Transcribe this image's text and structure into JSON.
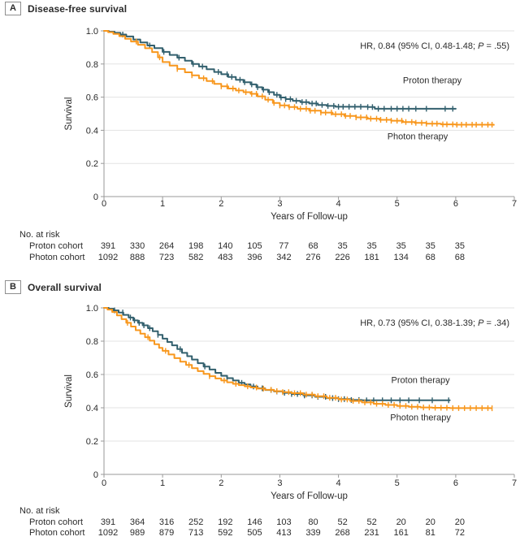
{
  "colors": {
    "proton": "#33606E",
    "photon": "#F8971D",
    "grid": "#e3e3e3",
    "axis": "#9a9a9a",
    "text": "#2b2b2b"
  },
  "chart_data": [
    {
      "type": "line",
      "subtype": "kaplan-meier-step",
      "panel_label": "A",
      "title": "Disease-free survival",
      "hr_annotation": {
        "prefix": "HR, 0.84 (95% CI, 0.48-1.48; ",
        "italic": "P",
        "suffix": " = .55)"
      },
      "xlabel": "Years of Follow-up",
      "ylabel": "Survival",
      "xlim": [
        0,
        7
      ],
      "ylim": [
        0,
        1
      ],
      "xticks": [
        0,
        1,
        2,
        3,
        4,
        5,
        6,
        7
      ],
      "ytick_values": [
        1.0,
        0.8,
        0.6,
        0.4,
        0.2,
        0
      ],
      "ytick_labels": [
        "1.0",
        "0.8",
        "0.6",
        "0.4",
        "0.2",
        "0"
      ],
      "grid": true,
      "series": [
        {
          "name": "Proton therapy",
          "color_key": "proton",
          "label_pos": [
            5.6,
            0.685
          ],
          "points": [
            [
              0,
              1
            ],
            [
              0.08,
              0.995
            ],
            [
              0.18,
              0.988
            ],
            [
              0.28,
              0.978
            ],
            [
              0.38,
              0.966
            ],
            [
              0.5,
              0.948
            ],
            [
              0.62,
              0.93
            ],
            [
              0.74,
              0.912
            ],
            [
              0.86,
              0.896
            ],
            [
              1.0,
              0.873
            ],
            [
              1.12,
              0.855
            ],
            [
              1.25,
              0.838
            ],
            [
              1.38,
              0.82
            ],
            [
              1.5,
              0.8
            ],
            [
              1.62,
              0.785
            ],
            [
              1.75,
              0.768
            ],
            [
              1.88,
              0.752
            ],
            [
              2.0,
              0.738
            ],
            [
              2.12,
              0.722
            ],
            [
              2.25,
              0.705
            ],
            [
              2.38,
              0.69
            ],
            [
              2.5,
              0.677
            ],
            [
              2.6,
              0.66
            ],
            [
              2.7,
              0.645
            ],
            [
              2.8,
              0.63
            ],
            [
              2.9,
              0.614
            ],
            [
              3.0,
              0.598
            ],
            [
              3.1,
              0.588
            ],
            [
              3.22,
              0.578
            ],
            [
              3.35,
              0.57
            ],
            [
              3.5,
              0.562
            ],
            [
              3.65,
              0.553
            ],
            [
              3.8,
              0.547
            ],
            [
              3.95,
              0.542
            ],
            [
              4.5,
              0.54
            ],
            [
              4.62,
              0.53
            ],
            [
              6.0,
              0.53
            ]
          ],
          "censors": [
            0.32,
            0.78,
            1.02,
            1.28,
            1.52,
            1.68,
            1.95,
            2.1,
            2.18,
            2.32,
            2.4,
            2.52,
            2.62,
            2.72,
            2.82,
            2.95,
            3.02,
            3.1,
            3.18,
            3.28,
            3.38,
            3.45,
            3.55,
            3.62,
            3.72,
            3.82,
            3.92,
            4.0,
            4.08,
            4.18,
            4.28,
            4.38,
            4.5,
            4.58,
            4.68,
            4.78,
            4.9,
            5.0,
            5.1,
            5.2,
            5.32,
            5.5,
            5.82,
            5.95
          ]
        },
        {
          "name": "Photon therapy",
          "color_key": "photon",
          "label_pos": [
            5.35,
            0.345
          ],
          "points": [
            [
              0,
              1
            ],
            [
              0.07,
              0.992
            ],
            [
              0.16,
              0.982
            ],
            [
              0.26,
              0.968
            ],
            [
              0.36,
              0.952
            ],
            [
              0.46,
              0.936
            ],
            [
              0.58,
              0.916
            ],
            [
              0.7,
              0.895
            ],
            [
              0.82,
              0.872
            ],
            [
              0.92,
              0.84
            ],
            [
              1.0,
              0.812
            ],
            [
              1.12,
              0.79
            ],
            [
              1.25,
              0.77
            ],
            [
              1.38,
              0.75
            ],
            [
              1.5,
              0.732
            ],
            [
              1.62,
              0.714
            ],
            [
              1.75,
              0.697
            ],
            [
              1.88,
              0.68
            ],
            [
              2.0,
              0.665
            ],
            [
              2.12,
              0.652
            ],
            [
              2.25,
              0.64
            ],
            [
              2.38,
              0.63
            ],
            [
              2.5,
              0.62
            ],
            [
              2.62,
              0.605
            ],
            [
              2.75,
              0.585
            ],
            [
              2.88,
              0.565
            ],
            [
              3.0,
              0.55
            ],
            [
              3.15,
              0.54
            ],
            [
              3.3,
              0.53
            ],
            [
              3.5,
              0.518
            ],
            [
              3.7,
              0.507
            ],
            [
              3.9,
              0.497
            ],
            [
              4.1,
              0.487
            ],
            [
              4.3,
              0.478
            ],
            [
              4.5,
              0.47
            ],
            [
              4.7,
              0.463
            ],
            [
              4.9,
              0.458
            ],
            [
              5.1,
              0.45
            ],
            [
              5.3,
              0.445
            ],
            [
              5.5,
              0.44
            ],
            [
              5.75,
              0.436
            ],
            [
              6.0,
              0.434
            ],
            [
              6.65,
              0.433
            ]
          ],
          "censors": [
            0.55,
            0.95,
            1.25,
            1.5,
            1.7,
            1.85,
            2.0,
            2.1,
            2.2,
            2.3,
            2.42,
            2.52,
            2.6,
            2.7,
            2.8,
            2.9,
            3.0,
            3.08,
            3.16,
            3.25,
            3.35,
            3.45,
            3.52,
            3.6,
            3.7,
            3.78,
            3.88,
            3.95,
            4.05,
            4.12,
            4.2,
            4.3,
            4.38,
            4.48,
            4.55,
            4.65,
            4.72,
            4.82,
            4.9,
            5.0,
            5.08,
            5.15,
            5.25,
            5.32,
            5.42,
            5.5,
            5.6,
            5.68,
            5.78,
            5.85,
            5.95,
            6.02,
            6.1,
            6.18,
            6.28,
            6.35,
            6.45,
            6.55,
            6.62
          ]
        }
      ],
      "risk_table": {
        "heading": "No. at risk",
        "times": [
          0,
          0.5,
          1,
          1.5,
          2,
          2.5,
          3,
          3.5,
          4,
          4.5,
          5,
          5.5,
          6
        ],
        "rows": [
          {
            "label": "Proton cohort",
            "values": [
              391,
              330,
              264,
              198,
              140,
              105,
              77,
              68,
              35,
              35,
              35,
              35,
              35
            ]
          },
          {
            "label": "Photon cohort",
            "values": [
              1092,
              888,
              723,
              582,
              483,
              396,
              342,
              276,
              226,
              181,
              134,
              68,
              68
            ]
          }
        ]
      }
    },
    {
      "type": "line",
      "subtype": "kaplan-meier-step",
      "panel_label": "B",
      "title": "Overall survival",
      "hr_annotation": {
        "prefix": "HR, 0.73 (95% CI, 0.38-1.39; ",
        "italic": "P",
        "suffix": " = .34)"
      },
      "xlabel": "Years of Follow-up",
      "ylabel": "Survival",
      "xlim": [
        0,
        7
      ],
      "ylim": [
        0,
        1
      ],
      "xticks": [
        0,
        1,
        2,
        3,
        4,
        5,
        6,
        7
      ],
      "ytick_values": [
        1.0,
        0.8,
        0.6,
        0.4,
        0.2,
        0
      ],
      "ytick_labels": [
        "1.0",
        "0.8",
        "0.6",
        "0.4",
        "0.2",
        "0"
      ],
      "grid": true,
      "series": [
        {
          "name": "Proton therapy",
          "color_key": "proton",
          "label_pos": [
            5.4,
            0.55
          ],
          "points": [
            [
              0,
              1
            ],
            [
              0.08,
              0.995
            ],
            [
              0.16,
              0.985
            ],
            [
              0.25,
              0.972
            ],
            [
              0.33,
              0.958
            ],
            [
              0.42,
              0.942
            ],
            [
              0.5,
              0.925
            ],
            [
              0.58,
              0.91
            ],
            [
              0.66,
              0.895
            ],
            [
              0.75,
              0.878
            ],
            [
              0.83,
              0.86
            ],
            [
              0.92,
              0.838
            ],
            [
              1.0,
              0.815
            ],
            [
              1.08,
              0.795
            ],
            [
              1.16,
              0.775
            ],
            [
              1.25,
              0.752
            ],
            [
              1.33,
              0.73
            ],
            [
              1.42,
              0.71
            ],
            [
              1.5,
              0.69
            ],
            [
              1.6,
              0.668
            ],
            [
              1.7,
              0.648
            ],
            [
              1.8,
              0.63
            ],
            [
              1.9,
              0.61
            ],
            [
              2.0,
              0.592
            ],
            [
              2.1,
              0.578
            ],
            [
              2.2,
              0.564
            ],
            [
              2.3,
              0.55
            ],
            [
              2.4,
              0.54
            ],
            [
              2.5,
              0.528
            ],
            [
              2.62,
              0.517
            ],
            [
              2.75,
              0.507
            ],
            [
              2.9,
              0.498
            ],
            [
              3.05,
              0.49
            ],
            [
              3.2,
              0.483
            ],
            [
              3.4,
              0.474
            ],
            [
              3.6,
              0.466
            ],
            [
              3.8,
              0.458
            ],
            [
              4.0,
              0.452
            ],
            [
              4.2,
              0.447
            ],
            [
              4.4,
              0.445
            ],
            [
              5.9,
              0.445
            ]
          ],
          "censors": [
            0.18,
            0.32,
            0.45,
            0.52,
            0.6,
            0.68,
            0.78,
            0.92,
            1.3,
            1.72,
            2.1,
            2.35,
            2.55,
            2.7,
            2.85,
            2.95,
            3.08,
            3.2,
            3.3,
            3.42,
            3.55,
            3.65,
            3.78,
            3.9,
            4.0,
            4.1,
            4.22,
            4.35,
            4.48,
            4.6,
            4.75,
            4.9,
            5.05,
            5.2,
            5.38,
            5.6,
            5.88
          ]
        },
        {
          "name": "Photon therapy",
          "color_key": "photon",
          "label_pos": [
            5.4,
            0.325
          ],
          "points": [
            [
              0,
              1
            ],
            [
              0.06,
              0.99
            ],
            [
              0.14,
              0.975
            ],
            [
              0.22,
              0.955
            ],
            [
              0.3,
              0.932
            ],
            [
              0.38,
              0.91
            ],
            [
              0.46,
              0.888
            ],
            [
              0.54,
              0.866
            ],
            [
              0.62,
              0.845
            ],
            [
              0.7,
              0.824
            ],
            [
              0.78,
              0.803
            ],
            [
              0.86,
              0.782
            ],
            [
              0.94,
              0.76
            ],
            [
              1.0,
              0.742
            ],
            [
              1.1,
              0.72
            ],
            [
              1.2,
              0.698
            ],
            [
              1.3,
              0.677
            ],
            [
              1.4,
              0.657
            ],
            [
              1.5,
              0.638
            ],
            [
              1.6,
              0.62
            ],
            [
              1.7,
              0.604
            ],
            [
              1.8,
              0.59
            ],
            [
              1.9,
              0.576
            ],
            [
              2.0,
              0.564
            ],
            [
              2.1,
              0.553
            ],
            [
              2.2,
              0.544
            ],
            [
              2.3,
              0.536
            ],
            [
              2.4,
              0.529
            ],
            [
              2.5,
              0.522
            ],
            [
              2.62,
              0.515
            ],
            [
              2.75,
              0.508
            ],
            [
              2.9,
              0.5
            ],
            [
              3.05,
              0.494
            ],
            [
              3.2,
              0.488
            ],
            [
              3.4,
              0.479
            ],
            [
              3.6,
              0.47
            ],
            [
              3.8,
              0.46
            ],
            [
              4.0,
              0.45
            ],
            [
              4.2,
              0.441
            ],
            [
              4.4,
              0.432
            ],
            [
              4.6,
              0.424
            ],
            [
              4.8,
              0.417
            ],
            [
              5.0,
              0.411
            ],
            [
              5.2,
              0.406
            ],
            [
              5.4,
              0.402
            ],
            [
              5.6,
              0.4
            ],
            [
              5.9,
              0.398
            ],
            [
              6.6,
              0.397
            ]
          ],
          "censors": [
            0.4,
            0.75,
            1.05,
            1.45,
            1.8,
            2.05,
            2.25,
            2.45,
            2.6,
            2.72,
            2.85,
            2.95,
            3.05,
            3.15,
            3.25,
            3.35,
            3.45,
            3.55,
            3.65,
            3.75,
            3.85,
            3.95,
            4.05,
            4.15,
            4.25,
            4.35,
            4.45,
            4.55,
            4.65,
            4.75,
            4.85,
            4.95,
            5.05,
            5.15,
            5.25,
            5.35,
            5.45,
            5.55,
            5.65,
            5.75,
            5.85,
            5.95,
            6.05,
            6.15,
            6.25,
            6.35,
            6.45,
            6.55,
            6.62
          ]
        }
      ],
      "risk_table": {
        "heading": "No. at risk",
        "times": [
          0,
          0.5,
          1,
          1.5,
          2,
          2.5,
          3,
          3.5,
          4,
          4.5,
          5,
          5.5,
          6
        ],
        "rows": [
          {
            "label": "Proton cohort",
            "values": [
              391,
              364,
              316,
              252,
              192,
              146,
              103,
              80,
              52,
              52,
              20,
              20,
              20
            ]
          },
          {
            "label": "Photon cohort",
            "values": [
              1092,
              989,
              879,
              713,
              592,
              505,
              413,
              339,
              268,
              231,
              161,
              81,
              72
            ]
          }
        ]
      }
    }
  ]
}
